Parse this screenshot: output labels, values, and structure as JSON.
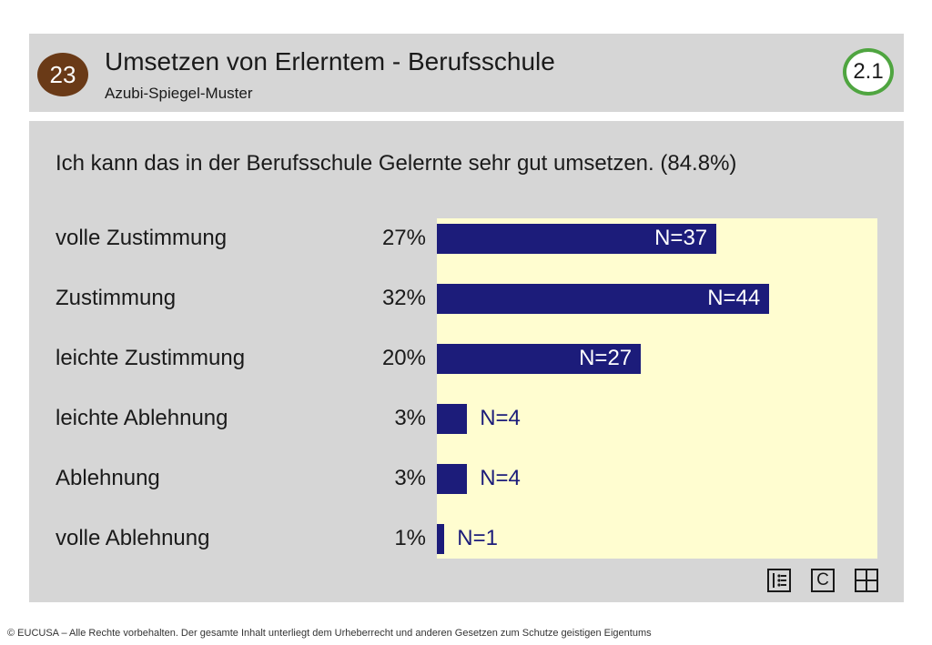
{
  "header": {
    "number": "23",
    "title": "Umsetzen von Erlerntem - Berufsschule",
    "subtitle": "Azubi-Spiegel-Muster",
    "version": "2.1",
    "number_color": "#6a3a17",
    "version_border_color": "#4fa540"
  },
  "chart_data": {
    "type": "bar",
    "orientation": "horizontal",
    "title": "Ich kann das in der Berufsschule Gelernte sehr gut umsetzen. (84.8%)",
    "categories": [
      "volle Zustimmung",
      "Zustimmung",
      "leichte Zustimmung",
      "leichte Ablehnung",
      "Ablehnung",
      "volle Ablehnung"
    ],
    "percent_labels": [
      "27%",
      "32%",
      "20%",
      "3%",
      "3%",
      "1%"
    ],
    "values": [
      37,
      44,
      27,
      4,
      4,
      1
    ],
    "n_labels": [
      "N=37",
      "N=44",
      "N=27",
      "N=4",
      "N=4",
      "N=1"
    ],
    "xlim": [
      0,
      50
    ],
    "bar_color": "#1c1c7a",
    "plot_background": "#fffdd0"
  },
  "nav": {
    "icons": [
      "list-icon",
      "c-icon",
      "grid-icon"
    ],
    "c_label": "C"
  },
  "footer": {
    "text": "© EUCUSA – Alle Rechte vorbehalten. Der gesamte Inhalt unterliegt dem Urheberrecht und anderen Gesetzen zum Schutze geistigen Eigentums"
  }
}
